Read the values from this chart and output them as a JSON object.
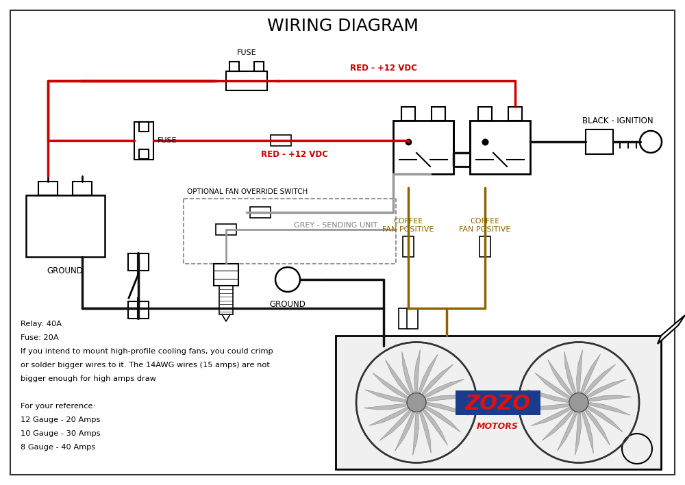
{
  "title": "WIRING DIAGRAM",
  "title_fontsize": 18,
  "background_color": "#ffffff",
  "border_color": "#333333",
  "wire_red": "#cc0000",
  "wire_black": "#111111",
  "wire_grey": "#999999",
  "wire_brown": "#8B6400",
  "label_red_top": "RED - +12 VDC",
  "label_red_mid": "RED - +12 VDC",
  "label_black": "BLACK - IGNITION",
  "label_coffee1": "COFFEE\nFAN POSITIVE",
  "label_coffee2": "COFFEE\nFAN POSITIVE",
  "label_grey": "GREY - SENDING UNIT",
  "label_optional": "OPTIONAL FAN OVERRIDE SWITCH",
  "label_fuse_top": "FUSE",
  "label_fuse_mid": "FUSE",
  "label_ground1": "GROUND",
  "label_ground2": "GROUND",
  "notes": [
    "Relay: 40A",
    "Fuse: 20A",
    "If you intend to mount high-profile cooling fans, you could crimp",
    "or solder bigger wires to it. The 14AWG wires (15 amps) are not",
    "bigger enough for high amps draw",
    "",
    "For your reference:",
    "12 Gauge - 20 Amps",
    "10 Gauge - 30 Amps",
    "8 Gauge - 40 Amps"
  ],
  "zozo_color": "#dd1111",
  "zozo_blue": "#1a3c8c",
  "zozo_text": "ZOZO",
  "motors_text": "MOTORS",
  "fig_w": 10.0,
  "fig_h": 7.08,
  "dpi": 100
}
